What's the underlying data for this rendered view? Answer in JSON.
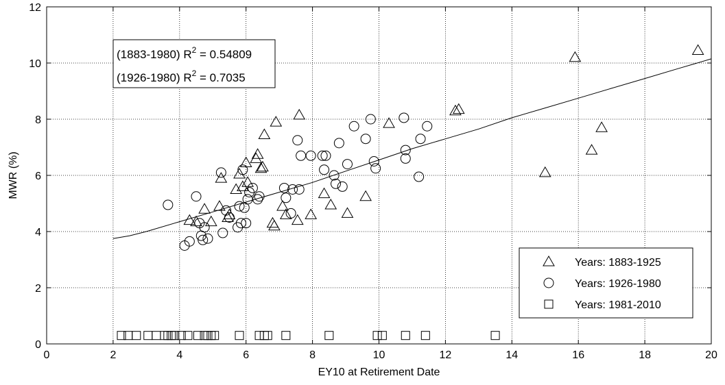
{
  "chart_data": {
    "type": "scatter",
    "xlabel": "EY10 at Retirement Date",
    "ylabel": "MWR (%)",
    "xlim": [
      0,
      20
    ],
    "ylim": [
      0,
      12
    ],
    "xticks": [
      0,
      2,
      4,
      6,
      8,
      10,
      12,
      14,
      16,
      18,
      20
    ],
    "yticks": [
      0,
      2,
      4,
      6,
      8,
      10,
      12
    ],
    "grid": true,
    "legend_position": "bottom-right",
    "annotations": [
      {
        "label": "(1883-1980) R",
        "sup": "2",
        "value": " = 0.54809"
      },
      {
        "label": "(1926-1980) R",
        "sup": "2",
        "value": " = 0.7035"
      }
    ],
    "series": [
      {
        "name": "Years: 1883-1925",
        "marker": "triangle",
        "points": [
          [
            4.3,
            4.4
          ],
          [
            4.5,
            4.35
          ],
          [
            4.75,
            4.8
          ],
          [
            4.95,
            4.35
          ],
          [
            5.2,
            4.9
          ],
          [
            5.25,
            5.9
          ],
          [
            5.45,
            4.5
          ],
          [
            5.5,
            4.6
          ],
          [
            5.7,
            5.5
          ],
          [
            5.8,
            6.05
          ],
          [
            5.9,
            5.6
          ],
          [
            6.0,
            6.45
          ],
          [
            6.05,
            5.75
          ],
          [
            6.3,
            6.6
          ],
          [
            6.35,
            6.75
          ],
          [
            6.45,
            6.25
          ],
          [
            6.5,
            6.3
          ],
          [
            6.55,
            7.45
          ],
          [
            6.8,
            4.3
          ],
          [
            6.85,
            4.2
          ],
          [
            6.9,
            7.9
          ],
          [
            7.1,
            4.9
          ],
          [
            7.2,
            4.6
          ],
          [
            7.55,
            4.4
          ],
          [
            7.6,
            8.15
          ],
          [
            7.95,
            4.6
          ],
          [
            8.35,
            5.35
          ],
          [
            8.55,
            4.95
          ],
          [
            9.05,
            4.65
          ],
          [
            9.6,
            5.25
          ],
          [
            10.3,
            7.85
          ],
          [
            12.3,
            8.3
          ],
          [
            12.4,
            8.35
          ],
          [
            15.0,
            6.1
          ],
          [
            15.9,
            10.2
          ],
          [
            16.4,
            6.9
          ],
          [
            16.7,
            7.7
          ],
          [
            19.6,
            10.45
          ]
        ]
      },
      {
        "name": "Years: 1926-1980",
        "marker": "circle",
        "points": [
          [
            3.65,
            4.95
          ],
          [
            4.15,
            3.5
          ],
          [
            4.3,
            3.65
          ],
          [
            4.5,
            5.25
          ],
          [
            4.6,
            4.3
          ],
          [
            4.65,
            3.85
          ],
          [
            4.7,
            3.7
          ],
          [
            4.75,
            4.15
          ],
          [
            4.85,
            3.75
          ],
          [
            5.25,
            6.1
          ],
          [
            5.3,
            3.95
          ],
          [
            5.4,
            4.75
          ],
          [
            5.5,
            4.5
          ],
          [
            5.75,
            4.15
          ],
          [
            5.8,
            4.9
          ],
          [
            5.85,
            4.3
          ],
          [
            5.9,
            6.2
          ],
          [
            5.95,
            4.85
          ],
          [
            6.0,
            4.3
          ],
          [
            6.05,
            5.15
          ],
          [
            6.1,
            5.4
          ],
          [
            6.2,
            5.55
          ],
          [
            6.35,
            5.15
          ],
          [
            6.4,
            5.25
          ],
          [
            7.15,
            5.55
          ],
          [
            7.2,
            5.2
          ],
          [
            7.35,
            4.65
          ],
          [
            7.4,
            5.5
          ],
          [
            7.55,
            7.25
          ],
          [
            7.6,
            5.5
          ],
          [
            7.65,
            6.7
          ],
          [
            7.95,
            6.7
          ],
          [
            8.3,
            6.7
          ],
          [
            8.35,
            6.2
          ],
          [
            8.4,
            6.7
          ],
          [
            8.65,
            6.0
          ],
          [
            8.7,
            5.7
          ],
          [
            8.8,
            7.15
          ],
          [
            8.9,
            5.6
          ],
          [
            9.05,
            6.4
          ],
          [
            9.25,
            7.75
          ],
          [
            9.6,
            7.3
          ],
          [
            9.75,
            8.0
          ],
          [
            9.85,
            6.5
          ],
          [
            9.9,
            6.25
          ],
          [
            10.75,
            8.05
          ],
          [
            10.8,
            6.9
          ],
          [
            10.8,
            6.6
          ],
          [
            11.2,
            5.95
          ],
          [
            11.25,
            7.3
          ],
          [
            11.45,
            7.75
          ]
        ]
      },
      {
        "name": "Years: 1981-2010",
        "marker": "square",
        "points": [
          [
            2.25,
            0.3
          ],
          [
            2.45,
            0.3
          ],
          [
            2.7,
            0.3
          ],
          [
            3.05,
            0.3
          ],
          [
            3.3,
            0.3
          ],
          [
            3.55,
            0.3
          ],
          [
            3.65,
            0.3
          ],
          [
            3.75,
            0.3
          ],
          [
            3.85,
            0.3
          ],
          [
            4.05,
            0.3
          ],
          [
            4.25,
            0.3
          ],
          [
            4.55,
            0.3
          ],
          [
            4.75,
            0.3
          ],
          [
            4.85,
            0.3
          ],
          [
            4.95,
            0.3
          ],
          [
            5.05,
            0.3
          ],
          [
            5.8,
            0.3
          ],
          [
            6.4,
            0.3
          ],
          [
            6.55,
            0.3
          ],
          [
            6.65,
            0.3
          ],
          [
            7.2,
            0.3
          ],
          [
            8.5,
            0.3
          ],
          [
            9.95,
            0.3
          ],
          [
            10.1,
            0.3
          ],
          [
            10.8,
            0.3
          ],
          [
            11.4,
            0.3
          ],
          [
            13.5,
            0.3
          ]
        ]
      }
    ],
    "trendline": {
      "x": [
        2.0,
        2.5,
        3,
        4,
        5,
        6,
        7,
        8,
        9,
        10,
        11,
        12,
        13,
        14,
        15,
        16,
        17,
        18,
        19,
        20
      ],
      "y": [
        3.75,
        3.85,
        4.0,
        4.35,
        4.7,
        5.05,
        5.4,
        5.75,
        6.15,
        6.55,
        6.95,
        7.3,
        7.65,
        8.05,
        8.4,
        8.75,
        9.1,
        9.45,
        9.8,
        10.15
      ]
    }
  }
}
